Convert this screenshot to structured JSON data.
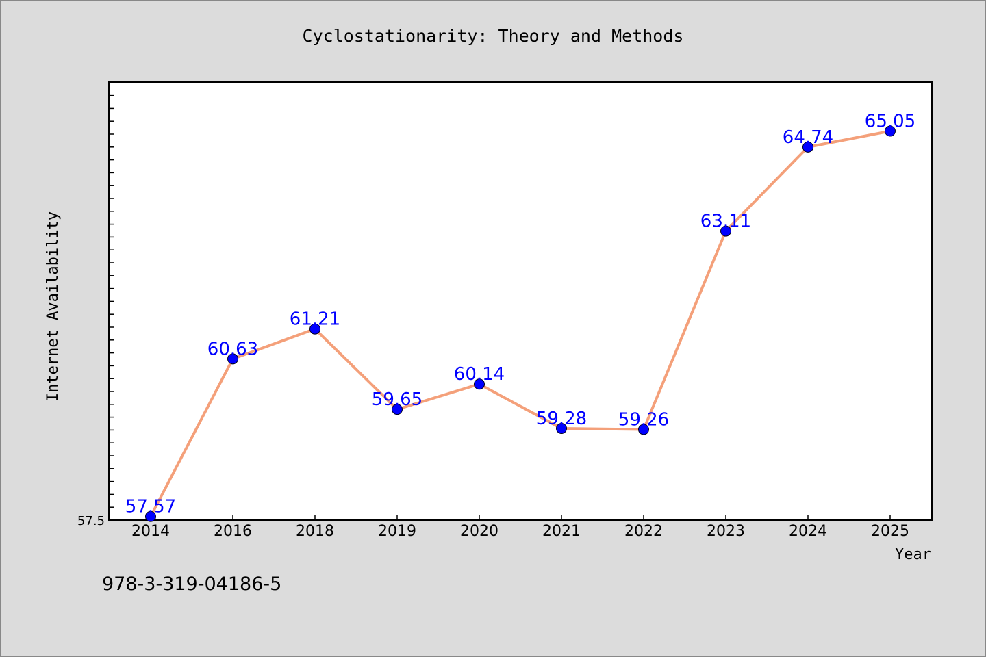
{
  "chart_data": {
    "type": "line",
    "title": "Cyclostationarity: Theory and Methods",
    "xlabel": "Year",
    "ylabel": "Internet Availability",
    "categories": [
      "2014",
      "2016",
      "2018",
      "2019",
      "2020",
      "2021",
      "2022",
      "2023",
      "2024",
      "2025"
    ],
    "series": [
      {
        "values": [
          57.57,
          60.63,
          61.21,
          59.65,
          60.14,
          59.28,
          59.26,
          63.11,
          64.74,
          65.05
        ],
        "labels": [
          "57.57",
          "60.63",
          "61.21",
          "59.65",
          "60.14",
          "59.28",
          "59.26",
          "63.11",
          "64.74",
          "65.05"
        ]
      }
    ],
    "ylim": [
      57.5,
      66.0
    ],
    "y_tick_label": "57.5",
    "grid": false,
    "line_color": "#f4a07a",
    "marker_color": "#0000ff",
    "label_color": "#0000ff"
  },
  "footer": {
    "isbn": "978-3-319-04186-5"
  }
}
